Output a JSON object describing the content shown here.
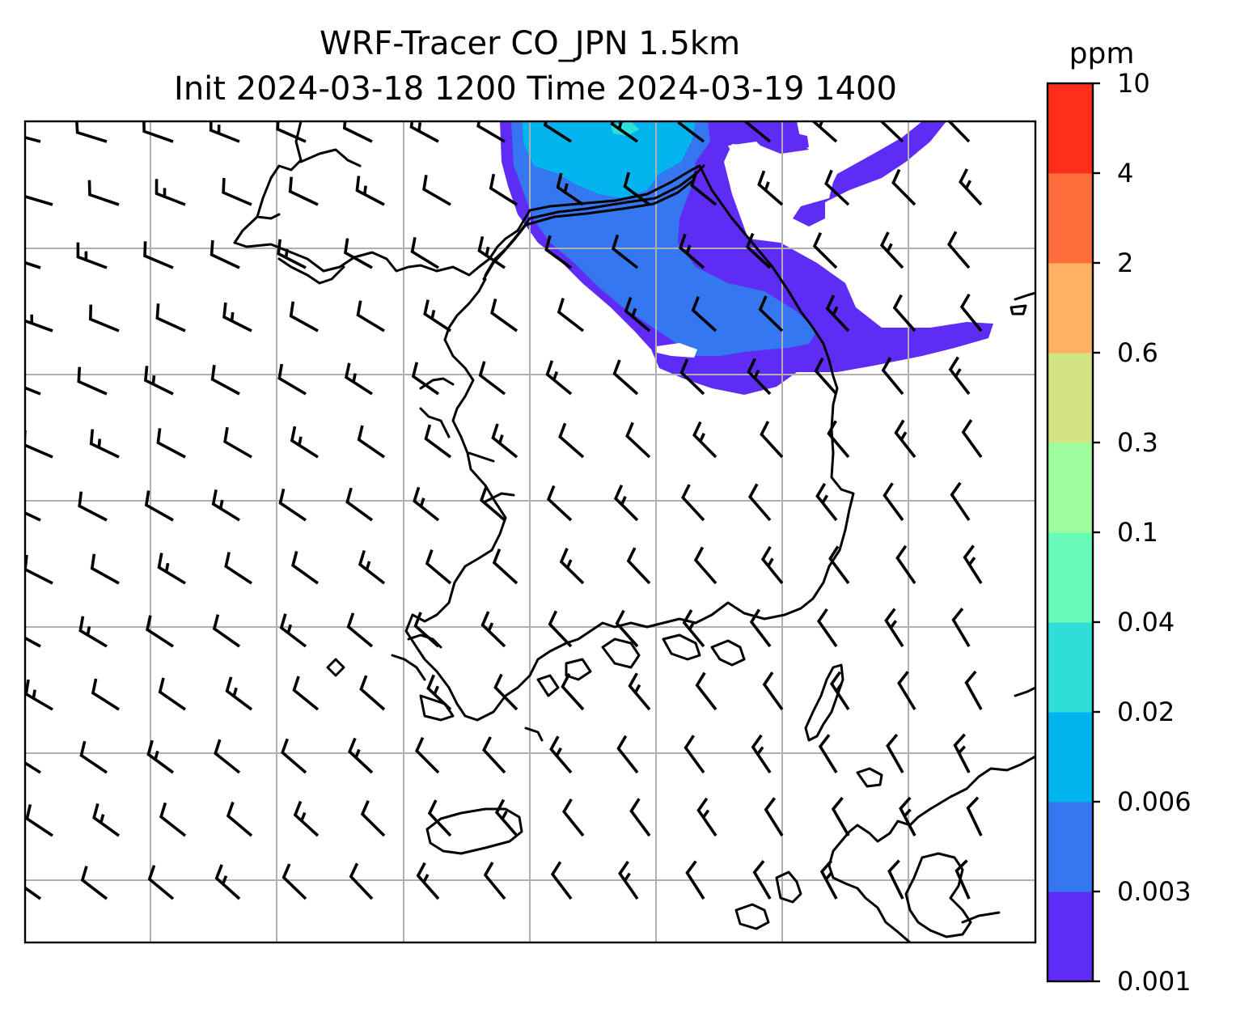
{
  "title": {
    "line1": "WRF-Tracer CO_JPN 1.5km",
    "line2": "Init 2024-03-18 1200 Time 2024-03-19 1400"
  },
  "colorbar": {
    "title": "ppm",
    "levels": [
      "0.001",
      "0.003",
      "0.006",
      "0.02",
      "0.04",
      "0.1",
      "0.3",
      "0.6",
      "2",
      "4",
      "10"
    ],
    "colors": [
      "#5e2cf5",
      "#3477f0",
      "#02b4ee",
      "#2fdfd7",
      "#68fcbb",
      "#9dfd9c",
      "#d2e383",
      "#feb162",
      "#fe6e3b",
      "#fc2d19"
    ]
  },
  "map": {
    "gridlines": true,
    "tracer_field": "CO",
    "wind_barbs": true
  }
}
